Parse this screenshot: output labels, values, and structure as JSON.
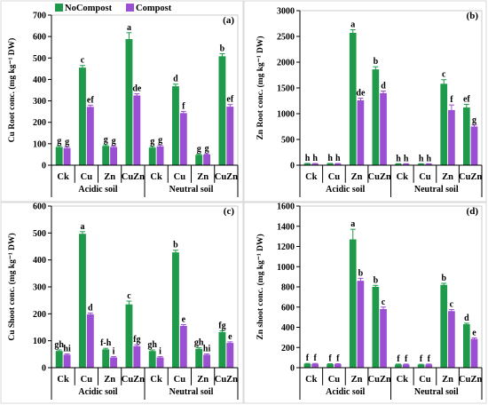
{
  "legend": [
    {
      "label": "NoCompost",
      "color": "#1f9a4a"
    },
    {
      "label": "Compost",
      "color": "#9b4fd2"
    }
  ],
  "chart_data": [
    {
      "type": "bar",
      "panel": "(a)",
      "ylabel": "Cu Root conc. (mg kg⁻¹ DW)",
      "ylim": [
        0,
        700
      ],
      "yticks": [
        0,
        100,
        200,
        300,
        400,
        500,
        600,
        700
      ],
      "categories": [
        "Ck",
        "Cu",
        "Zn",
        "CuZn",
        "Ck",
        "Cu",
        "Zn",
        "CuZn"
      ],
      "groups": [
        {
          "label": "Acidic soil",
          "span": [
            0,
            3
          ]
        },
        {
          "label": "Neutral soil",
          "span": [
            4,
            7
          ]
        }
      ],
      "series": [
        {
          "name": "NoCompost",
          "values": [
            85,
            455,
            90,
            588,
            82,
            368,
            48,
            508
          ],
          "errors": [
            5,
            10,
            5,
            30,
            5,
            10,
            3,
            12
          ],
          "letters": [
            "g",
            "c",
            "g",
            "a",
            "g",
            "d",
            "g",
            "b"
          ]
        },
        {
          "name": "Compost",
          "values": [
            80,
            272,
            85,
            325,
            88,
            243,
            50,
            273
          ],
          "errors": [
            5,
            8,
            5,
            8,
            5,
            8,
            3,
            10
          ],
          "letters": [
            "g",
            "ef",
            "g",
            "de",
            "g",
            "f",
            "g",
            "ef"
          ]
        }
      ]
    },
    {
      "type": "bar",
      "panel": "(b)",
      "ylabel": "Zn Root conc. (mg kg⁻¹ DW)",
      "ylim": [
        0,
        3000
      ],
      "yticks": [
        0,
        500,
        1000,
        1500,
        2000,
        2500,
        3000
      ],
      "categories": [
        "Ck",
        "Cu",
        "Zn",
        "CuZn",
        "Ck",
        "Cu",
        "Zn",
        "CuZn"
      ],
      "groups": [
        {
          "label": "Acidic soil",
          "span": [
            0,
            3
          ]
        },
        {
          "label": "Neutral soil",
          "span": [
            4,
            7
          ]
        }
      ],
      "series": [
        {
          "name": "NoCompost",
          "values": [
            30,
            30,
            2570,
            1860,
            25,
            25,
            1580,
            1120
          ],
          "errors": [
            5,
            5,
            60,
            50,
            5,
            5,
            80,
            60
          ],
          "letters": [
            "h",
            "h",
            "a",
            "b",
            "h",
            "h",
            "c",
            "ef"
          ]
        },
        {
          "name": "Compost",
          "values": [
            28,
            28,
            1260,
            1400,
            25,
            25,
            1070,
            750
          ],
          "errors": [
            5,
            5,
            40,
            40,
            5,
            5,
            100,
            30
          ],
          "letters": [
            "h",
            "h",
            "de",
            "d",
            "h",
            "h",
            "f",
            "g"
          ]
        }
      ]
    },
    {
      "type": "bar",
      "panel": "(c)",
      "ylabel": "Cu Shoot conc. (mg kg⁻¹ DW)",
      "ylim": [
        0,
        600
      ],
      "yticks": [
        0,
        100,
        200,
        300,
        400,
        500,
        600
      ],
      "categories": [
        "Ck",
        "Cu",
        "Zn",
        "CuZn",
        "Ck",
        "Cu",
        "Zn",
        "CuZn"
      ],
      "groups": [
        {
          "label": "Acidic soil",
          "span": [
            0,
            3
          ]
        },
        {
          "label": "Neutral soil",
          "span": [
            4,
            7
          ]
        }
      ],
      "series": [
        {
          "name": "NoCompost",
          "values": [
            62,
            497,
            68,
            235,
            62,
            428,
            70,
            132
          ],
          "errors": [
            4,
            8,
            4,
            12,
            4,
            8,
            4,
            5
          ],
          "letters": [
            "gh",
            "a",
            "f-h",
            "c",
            "gh",
            "b",
            "gh",
            "fg"
          ]
        },
        {
          "name": "Compost",
          "values": [
            48,
            198,
            38,
            80,
            38,
            155,
            48,
            92
          ],
          "errors": [
            3,
            5,
            3,
            5,
            3,
            5,
            3,
            4
          ],
          "letters": [
            "hi",
            "d",
            "i",
            "fg",
            "i",
            "e",
            "hi",
            "e"
          ]
        }
      ]
    },
    {
      "type": "bar",
      "panel": "(d)",
      "ylabel": "Zn shoot conc. (mg kg⁻¹ DW)",
      "ylim": [
        0,
        1600
      ],
      "yticks": [
        0,
        200,
        400,
        600,
        800,
        1000,
        1200,
        1400,
        1600
      ],
      "categories": [
        "Ck",
        "Cu",
        "Zn",
        "CuZn",
        "Ck",
        "Cu",
        "Zn",
        "CuZn"
      ],
      "groups": [
        {
          "label": "Acidic soil",
          "span": [
            0,
            3
          ]
        },
        {
          "label": "Neutral soil",
          "span": [
            4,
            7
          ]
        }
      ],
      "series": [
        {
          "name": "NoCompost",
          "values": [
            38,
            35,
            1270,
            800,
            32,
            30,
            820,
            430
          ],
          "errors": [
            4,
            4,
            100,
            15,
            4,
            4,
            15,
            10
          ],
          "letters": [
            "f",
            "f",
            "a",
            "b",
            "f",
            "f",
            "b",
            "d"
          ]
        },
        {
          "name": "Compost",
          "values": [
            38,
            35,
            860,
            580,
            32,
            32,
            560,
            285
          ],
          "errors": [
            4,
            4,
            25,
            20,
            4,
            4,
            15,
            10
          ],
          "letters": [
            "f",
            "f",
            "b",
            "c",
            "f",
            "f",
            "c",
            "e"
          ]
        }
      ]
    }
  ]
}
